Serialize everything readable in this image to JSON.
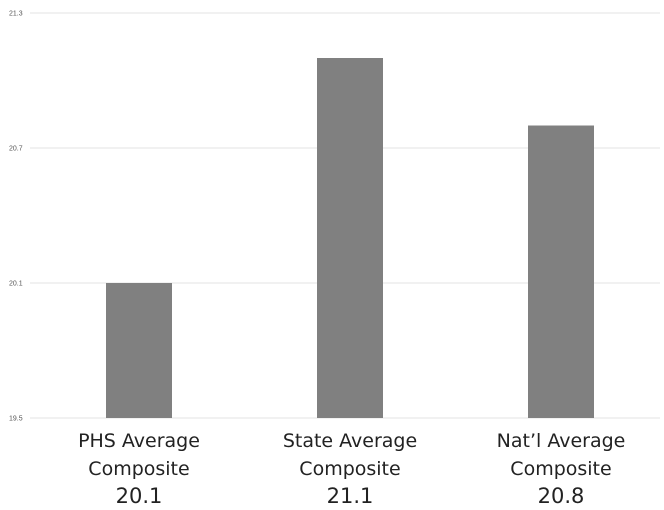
{
  "chart_data": {
    "type": "bar",
    "categories": [
      [
        "PHS Average",
        "Composite",
        "20.1"
      ],
      [
        "State Average",
        "Composite",
        "21.1"
      ],
      [
        "Nat’l Average",
        "Composite",
        "20.8"
      ]
    ],
    "values": [
      20.1,
      21.1,
      20.8
    ],
    "ylim": [
      19.5,
      21.3
    ],
    "yticks": [
      "19.5",
      "20.1",
      "20.7",
      "21.3"
    ],
    "title": "",
    "xlabel": "",
    "ylabel": "",
    "grid": true,
    "legend": "none",
    "bar_color": "#808080"
  }
}
